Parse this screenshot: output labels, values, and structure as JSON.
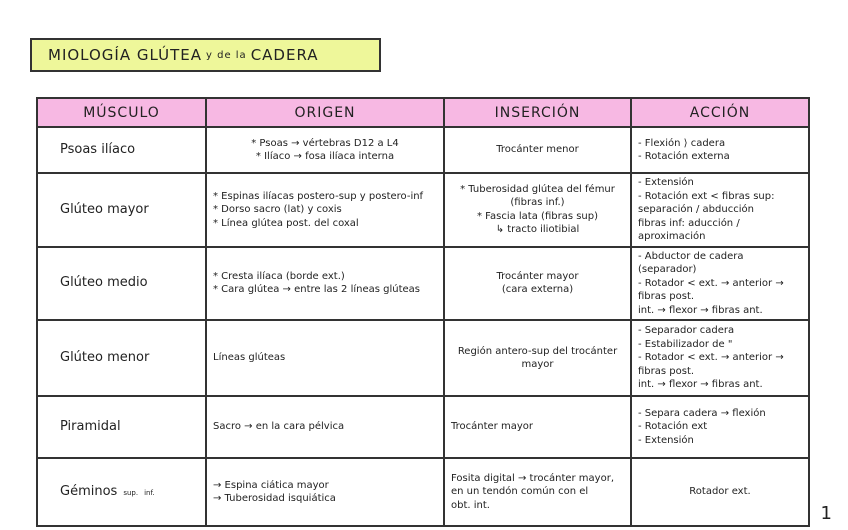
{
  "title": {
    "main": "MIOLOGÍA GLÚTEA",
    "connector": "y de la",
    "rest": "CADERA"
  },
  "headers": [
    "MÚSCULO",
    "ORIGEN",
    "INSERCIÓN",
    "ACCIÓN"
  ],
  "rows": [
    {
      "musculo": "Psoas ilíaco",
      "origen": [
        "* Psoas → vértebras D12 a L4",
        "* Ilíaco → fosa ilíaca interna"
      ],
      "insercion": [
        "Trocánter menor"
      ],
      "accion": [
        "- Flexión ⟩ cadera",
        "- Rotación externa"
      ]
    },
    {
      "musculo": "Glúteo mayor",
      "origen": [
        "* Espinas ilíacas postero-sup y postero-inf",
        "* Dorso sacro (lat) y coxis",
        "* Línea glútea post. del coxal"
      ],
      "insercion": [
        "* Tuberosidad glútea del fémur",
        "(fibras inf.)",
        "* Fascia lata (fibras sup)",
        "↳ tracto iliotibial"
      ],
      "accion": [
        "- Extensión",
        "- Rotación ext < fibras sup: separación / abducción",
        "fibras inf: aducción / aproximación"
      ]
    },
    {
      "musculo": "Glúteo medio",
      "origen": [
        "* Cresta ilíaca (borde ext.)",
        "* Cara glútea → entre las 2 líneas glúteas"
      ],
      "insercion": [
        "Trocánter mayor",
        "(cara externa)"
      ],
      "accion": [
        "- Abductor de cadera (separador)",
        "- Rotador < ext. → anterior → fibras post.",
        "int. → flexor → fibras ant."
      ]
    },
    {
      "musculo": "Glúteo menor",
      "origen": [
        "Líneas glúteas"
      ],
      "insercion": [
        "Región antero-sup del trocánter",
        "mayor"
      ],
      "accion": [
        "- Separador cadera",
        "- Estabilizador de \"",
        "- Rotador < ext. → anterior → fibras post.",
        "int. → flexor → fibras ant."
      ]
    },
    {
      "musculo": "Piramidal",
      "origen": [
        "Sacro → en la cara pélvica"
      ],
      "insercion": [
        "Trocánter mayor"
      ],
      "accion": [
        "- Separa cadera → flexión",
        "- Rotación ext",
        "- Extensión"
      ]
    },
    {
      "musculo": "Géminos",
      "sub": [
        "sup.",
        "inf."
      ],
      "origen": [
        "→ Espina ciática mayor",
        "→ Tuberosidad isquiática"
      ],
      "insercion": [
        "Fosita digital → trocánter mayor,",
        "en un tendón común con el",
        "obt. int."
      ],
      "accion": [
        "Rotador ext."
      ]
    }
  ],
  "page_number": "1"
}
